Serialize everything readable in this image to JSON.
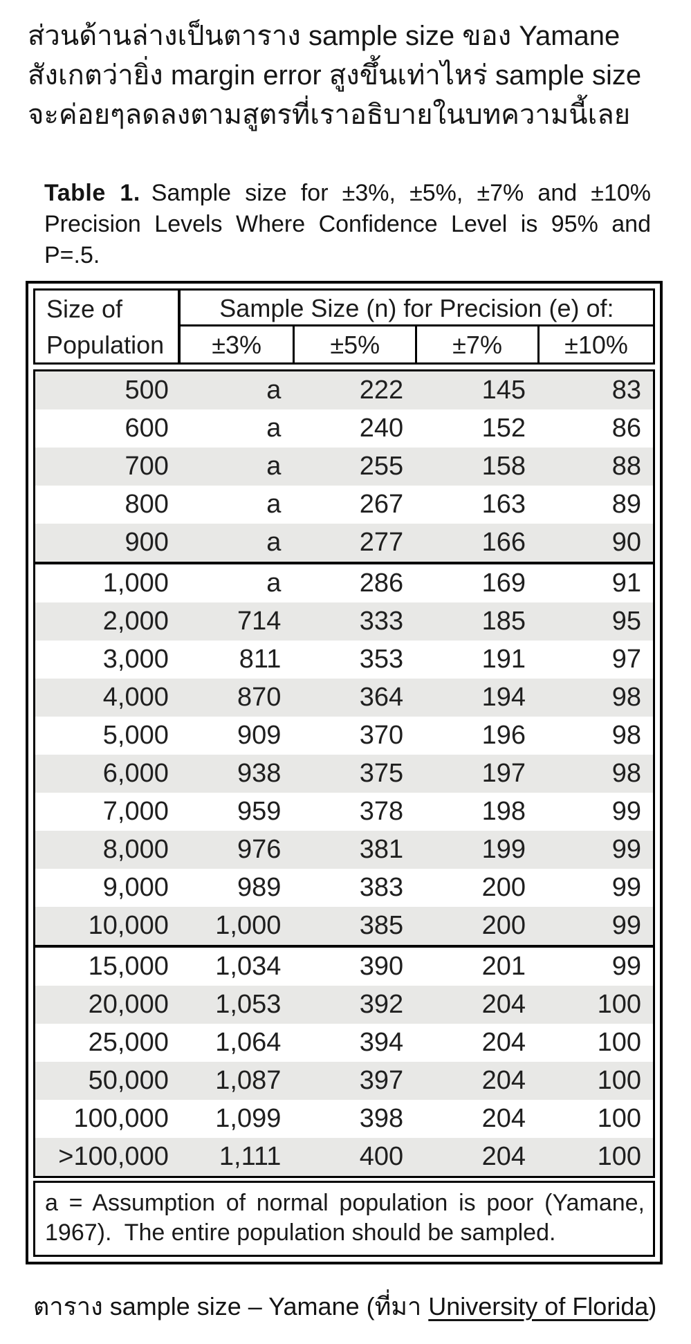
{
  "page": {
    "background": "#ffffff",
    "text_color": "#1a1a1a",
    "row_shade_color": "#e8e8e6",
    "border_color": "#000000"
  },
  "intro": {
    "lines": [
      "ส่วนด้านล่างเป็นตาราง sample size ของ Yamane",
      "สังเกตว่ายิ่ง margin error สูงขึ้นเท่าไหร่ sample size",
      "จะค่อยๆลดลงตามสูตรที่เราอธิบายในบทความนี้เลย"
    ]
  },
  "figure": {
    "title": {
      "label": "Table 1.",
      "line1_rest": "Sample size for ±3%, ±5%, ±7% and ±10%",
      "line2": "Precision Levels Where Confidence Level is 95% and",
      "line3": "P=.5."
    },
    "header": {
      "population_line1": "Size of",
      "population_line2": "Population",
      "group": "Sample Size (n) for Precision (e) of:",
      "precisions": [
        "±3%",
        "±5%",
        "±7%",
        "±10%"
      ]
    },
    "columns": [
      "Size of Population",
      "±3%",
      "±5%",
      "±7%",
      "±10%"
    ],
    "sections": [
      {
        "rows": [
          [
            "500",
            "a",
            "222",
            "145",
            "83"
          ],
          [
            "600",
            "a",
            "240",
            "152",
            "86"
          ],
          [
            "700",
            "a",
            "255",
            "158",
            "88"
          ],
          [
            "800",
            "a",
            "267",
            "163",
            "89"
          ],
          [
            "900",
            "a",
            "277",
            "166",
            "90"
          ]
        ]
      },
      {
        "rows": [
          [
            "1,000",
            "a",
            "286",
            "169",
            "91"
          ],
          [
            "2,000",
            "714",
            "333",
            "185",
            "95"
          ],
          [
            "3,000",
            "811",
            "353",
            "191",
            "97"
          ],
          [
            "4,000",
            "870",
            "364",
            "194",
            "98"
          ],
          [
            "5,000",
            "909",
            "370",
            "196",
            "98"
          ],
          [
            "6,000",
            "938",
            "375",
            "197",
            "98"
          ],
          [
            "7,000",
            "959",
            "378",
            "198",
            "99"
          ],
          [
            "8,000",
            "976",
            "381",
            "199",
            "99"
          ],
          [
            "9,000",
            "989",
            "383",
            "200",
            "99"
          ],
          [
            "10,000",
            "1,000",
            "385",
            "200",
            "99"
          ]
        ]
      },
      {
        "rows": [
          [
            "15,000",
            "1,034",
            "390",
            "201",
            "99"
          ],
          [
            "20,000",
            "1,053",
            "392",
            "204",
            "100"
          ],
          [
            "25,000",
            "1,064",
            "394",
            "204",
            "100"
          ],
          [
            "50,000",
            "1,087",
            "397",
            "204",
            "100"
          ],
          [
            "100,000",
            "1,099",
            "398",
            "204",
            "100"
          ],
          [
            ">100,000",
            "1,111",
            "400",
            "204",
            "100"
          ]
        ]
      }
    ],
    "footnote": {
      "line1": "a = Assumption of normal population is poor (Yamane,",
      "line2": "1967).  The entire population should be sampled."
    }
  },
  "caption": {
    "prefix": "ตาราง sample size – Yamane (ที่มา ",
    "link": "University of Florida",
    "suffix": ")"
  }
}
